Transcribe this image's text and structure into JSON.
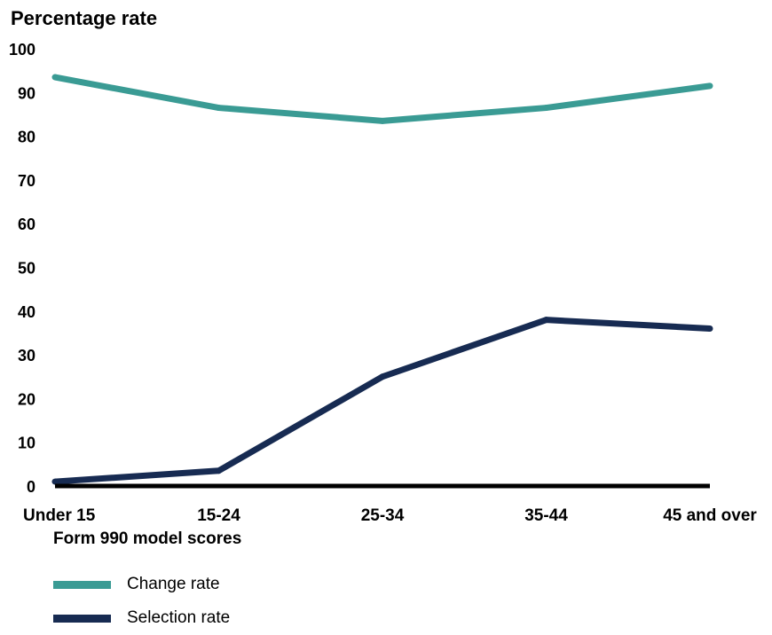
{
  "chart_data": {
    "type": "line",
    "ylabel": "Percentage rate",
    "xlabel": "Form 990 model scores",
    "categories": [
      "Under 15",
      "15-24",
      "25-34",
      "35-44",
      "45 and over"
    ],
    "ylim": [
      0,
      100
    ],
    "yticks": [
      0,
      10,
      20,
      30,
      40,
      50,
      60,
      70,
      80,
      90,
      100
    ],
    "grid": false,
    "legend_position": "bottom-left",
    "series": [
      {
        "name": "Change rate",
        "color": "#3a9b94",
        "values": [
          93.5,
          86.5,
          83.5,
          86.5,
          91.5
        ]
      },
      {
        "name": "Selection rate",
        "color": "#172b52",
        "values": [
          1,
          3.5,
          25,
          38,
          36
        ]
      }
    ]
  }
}
